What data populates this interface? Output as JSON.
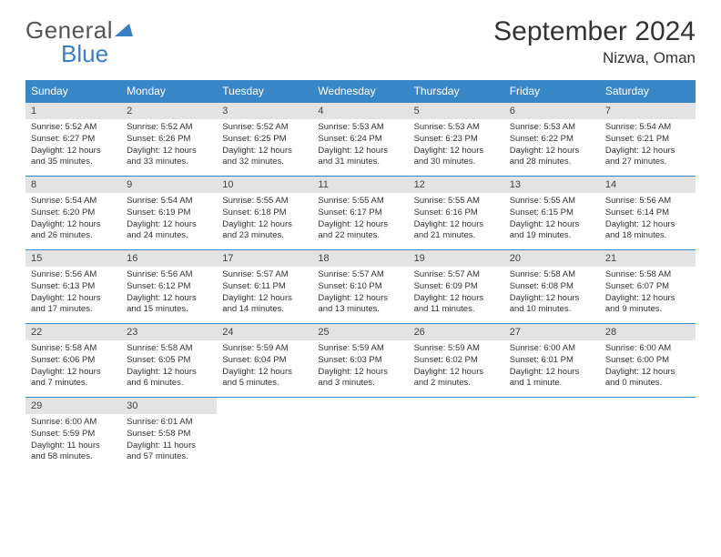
{
  "logo": {
    "part1": "General",
    "part2": "Blue"
  },
  "title": "September 2024",
  "location": "Nizwa, Oman",
  "colors": {
    "header_bg": "#3a87c7",
    "header_text": "#ffffff",
    "daynum_bg": "#e3e3e3",
    "row_border": "#3a87c7",
    "logo_gray": "#555555",
    "logo_blue": "#3a7fc4"
  },
  "dow": [
    "Sunday",
    "Monday",
    "Tuesday",
    "Wednesday",
    "Thursday",
    "Friday",
    "Saturday"
  ],
  "weeks": [
    [
      {
        "n": "1",
        "sr": "5:52 AM",
        "ss": "6:27 PM",
        "dl": "12 hours and 35 minutes."
      },
      {
        "n": "2",
        "sr": "5:52 AM",
        "ss": "6:26 PM",
        "dl": "12 hours and 33 minutes."
      },
      {
        "n": "3",
        "sr": "5:52 AM",
        "ss": "6:25 PM",
        "dl": "12 hours and 32 minutes."
      },
      {
        "n": "4",
        "sr": "5:53 AM",
        "ss": "6:24 PM",
        "dl": "12 hours and 31 minutes."
      },
      {
        "n": "5",
        "sr": "5:53 AM",
        "ss": "6:23 PM",
        "dl": "12 hours and 30 minutes."
      },
      {
        "n": "6",
        "sr": "5:53 AM",
        "ss": "6:22 PM",
        "dl": "12 hours and 28 minutes."
      },
      {
        "n": "7",
        "sr": "5:54 AM",
        "ss": "6:21 PM",
        "dl": "12 hours and 27 minutes."
      }
    ],
    [
      {
        "n": "8",
        "sr": "5:54 AM",
        "ss": "6:20 PM",
        "dl": "12 hours and 26 minutes."
      },
      {
        "n": "9",
        "sr": "5:54 AM",
        "ss": "6:19 PM",
        "dl": "12 hours and 24 minutes."
      },
      {
        "n": "10",
        "sr": "5:55 AM",
        "ss": "6:18 PM",
        "dl": "12 hours and 23 minutes."
      },
      {
        "n": "11",
        "sr": "5:55 AM",
        "ss": "6:17 PM",
        "dl": "12 hours and 22 minutes."
      },
      {
        "n": "12",
        "sr": "5:55 AM",
        "ss": "6:16 PM",
        "dl": "12 hours and 21 minutes."
      },
      {
        "n": "13",
        "sr": "5:55 AM",
        "ss": "6:15 PM",
        "dl": "12 hours and 19 minutes."
      },
      {
        "n": "14",
        "sr": "5:56 AM",
        "ss": "6:14 PM",
        "dl": "12 hours and 18 minutes."
      }
    ],
    [
      {
        "n": "15",
        "sr": "5:56 AM",
        "ss": "6:13 PM",
        "dl": "12 hours and 17 minutes."
      },
      {
        "n": "16",
        "sr": "5:56 AM",
        "ss": "6:12 PM",
        "dl": "12 hours and 15 minutes."
      },
      {
        "n": "17",
        "sr": "5:57 AM",
        "ss": "6:11 PM",
        "dl": "12 hours and 14 minutes."
      },
      {
        "n": "18",
        "sr": "5:57 AM",
        "ss": "6:10 PM",
        "dl": "12 hours and 13 minutes."
      },
      {
        "n": "19",
        "sr": "5:57 AM",
        "ss": "6:09 PM",
        "dl": "12 hours and 11 minutes."
      },
      {
        "n": "20",
        "sr": "5:58 AM",
        "ss": "6:08 PM",
        "dl": "12 hours and 10 minutes."
      },
      {
        "n": "21",
        "sr": "5:58 AM",
        "ss": "6:07 PM",
        "dl": "12 hours and 9 minutes."
      }
    ],
    [
      {
        "n": "22",
        "sr": "5:58 AM",
        "ss": "6:06 PM",
        "dl": "12 hours and 7 minutes."
      },
      {
        "n": "23",
        "sr": "5:58 AM",
        "ss": "6:05 PM",
        "dl": "12 hours and 6 minutes."
      },
      {
        "n": "24",
        "sr": "5:59 AM",
        "ss": "6:04 PM",
        "dl": "12 hours and 5 minutes."
      },
      {
        "n": "25",
        "sr": "5:59 AM",
        "ss": "6:03 PM",
        "dl": "12 hours and 3 minutes."
      },
      {
        "n": "26",
        "sr": "5:59 AM",
        "ss": "6:02 PM",
        "dl": "12 hours and 2 minutes."
      },
      {
        "n": "27",
        "sr": "6:00 AM",
        "ss": "6:01 PM",
        "dl": "12 hours and 1 minute."
      },
      {
        "n": "28",
        "sr": "6:00 AM",
        "ss": "6:00 PM",
        "dl": "12 hours and 0 minutes."
      }
    ],
    [
      {
        "n": "29",
        "sr": "6:00 AM",
        "ss": "5:59 PM",
        "dl": "11 hours and 58 minutes."
      },
      {
        "n": "30",
        "sr": "6:01 AM",
        "ss": "5:58 PM",
        "dl": "11 hours and 57 minutes."
      },
      null,
      null,
      null,
      null,
      null
    ]
  ],
  "labels": {
    "sunrise": "Sunrise: ",
    "sunset": "Sunset: ",
    "daylight": "Daylight: "
  }
}
